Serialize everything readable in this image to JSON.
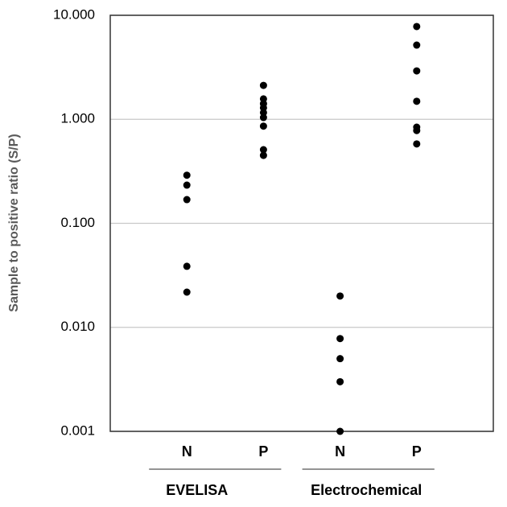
{
  "chart_data": {
    "type": "strip",
    "y_label": "Sample to positive ratio (S/P)",
    "categories": [
      "N",
      "P",
      "N",
      "P"
    ],
    "group_labels": [
      "EVELISA",
      "Electrochemical"
    ],
    "values": [
      [
        0.29,
        0.233,
        0.169,
        0.0386,
        0.0218
      ],
      [
        2.12,
        1.57,
        1.41,
        1.29,
        1.16,
        1.04,
        0.86,
        0.51,
        0.45
      ],
      [
        0.02,
        0.0078,
        0.005,
        0.003,
        0.001
      ],
      [
        7.8,
        5.17,
        2.92,
        1.49,
        0.84,
        0.78,
        0.58
      ]
    ],
    "color": "#000000",
    "log_scale": true,
    "ylim": [
      0.001,
      10
    ],
    "yticks": [
      {
        "value": 0.001,
        "label": "0.001"
      },
      {
        "value": 0.01,
        "label": "0.010"
      },
      {
        "value": 0.1,
        "label": "0.100"
      },
      {
        "value": 1,
        "label": "1.000"
      },
      {
        "value": 10,
        "label": "10.000"
      }
    ],
    "grid": true
  }
}
